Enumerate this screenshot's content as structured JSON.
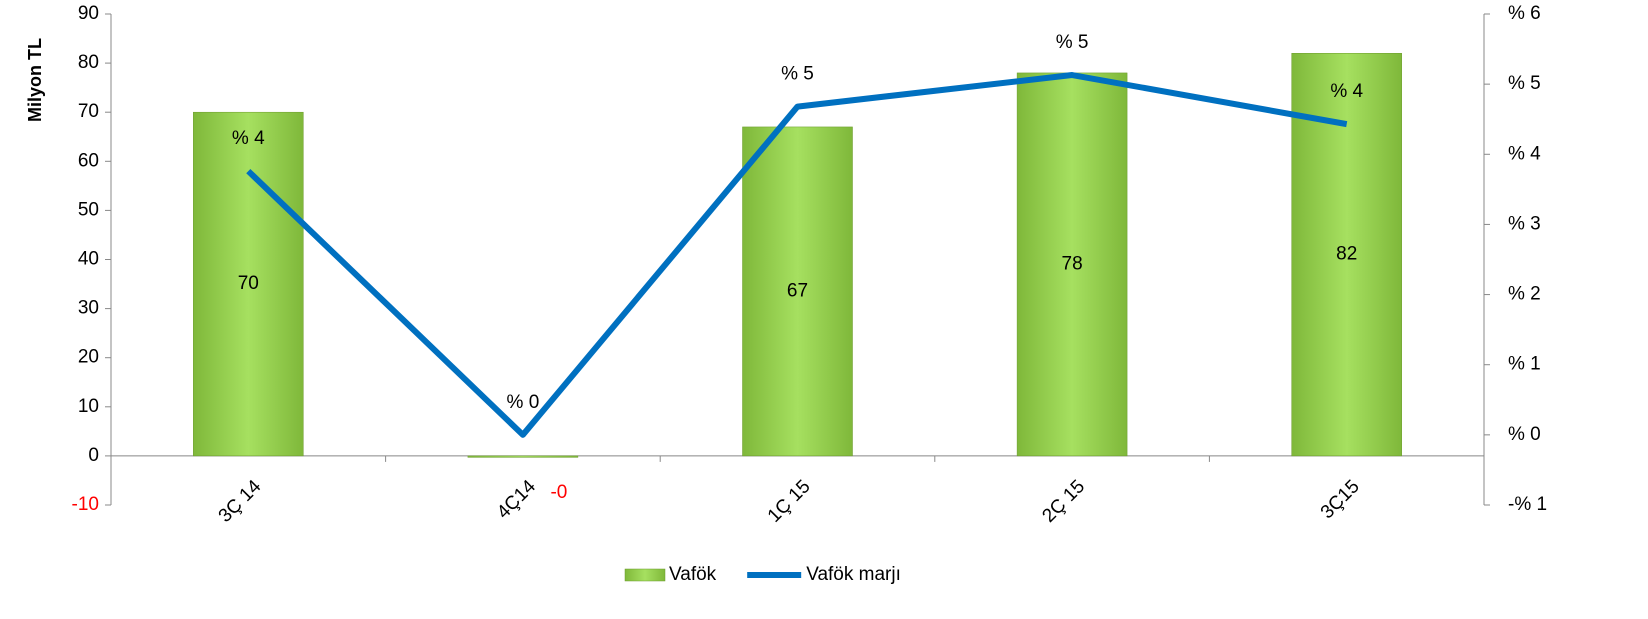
{
  "chart_data": {
    "type": "bar_line",
    "categories": [
      "3Ç 14",
      "4Ç14",
      "1Ç 15",
      "2Ç 15",
      "3Ç15"
    ],
    "y_axis_label": "Milyon TL",
    "series": [
      {
        "name": "Vafök",
        "color": "#92d050",
        "type": "bar",
        "axis": "y",
        "values": [
          70,
          -0.3,
          67,
          78,
          82
        ],
        "value_labels": [
          "70",
          "-0",
          "67",
          "78",
          "82"
        ]
      },
      {
        "name": "Vafök marjı",
        "color": "#0070c0",
        "type": "line",
        "axis": "y2",
        "values": [
          3.76,
          0,
          4.68,
          5.13,
          4.43
        ],
        "value_labels": [
          "% 4",
          "% 0",
          "% 5",
          "% 5",
          "% 4"
        ]
      }
    ],
    "ylim": [
      -10,
      90
    ],
    "yticks": [
      -10,
      0,
      10,
      20,
      30,
      40,
      50,
      60,
      70,
      80,
      90
    ],
    "y2lim": [
      -1,
      6
    ],
    "y2ticks": [
      {
        "value": -1,
        "label": "-% 1"
      },
      {
        "value": 0,
        "label": "% 0"
      },
      {
        "value": 1,
        "label": "% 1"
      },
      {
        "value": 2,
        "label": "% 2"
      },
      {
        "value": 3,
        "label": "% 3"
      },
      {
        "value": 4,
        "label": "% 4"
      },
      {
        "value": 5,
        "label": "% 5"
      },
      {
        "value": 6,
        "label": "% 6"
      }
    ],
    "negative_color": "#ff0000",
    "legend": "bottom"
  }
}
